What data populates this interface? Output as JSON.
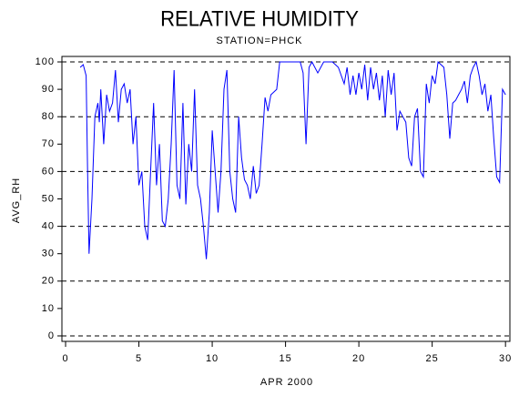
{
  "chart_data": {
    "type": "line",
    "title": "RELATIVE HUMIDITY",
    "subtitle": "STATION=PHCK",
    "xlabel": "APR 2000",
    "ylabel": "AVG_RH",
    "xlim": [
      -0.25,
      30.3
    ],
    "ylim": [
      -2,
      102
    ],
    "xticks": [
      0,
      5,
      10,
      15,
      20,
      25,
      30
    ],
    "yticks": [
      0,
      10,
      20,
      30,
      40,
      50,
      60,
      70,
      80,
      90,
      100
    ],
    "ygrid": [
      0,
      20,
      40,
      60,
      80,
      100
    ],
    "series": [
      {
        "color": "#0000ff",
        "x": [
          1.0,
          1.2,
          1.4,
          1.5,
          1.6,
          1.8,
          2.0,
          2.2,
          2.3,
          2.4,
          2.6,
          2.8,
          3.0,
          3.2,
          3.4,
          3.6,
          3.8,
          4.0,
          4.2,
          4.4,
          4.6,
          4.8,
          5.0,
          5.2,
          5.4,
          5.6,
          5.8,
          6.0,
          6.2,
          6.4,
          6.6,
          6.8,
          7.0,
          7.2,
          7.4,
          7.6,
          7.8,
          8.0,
          8.2,
          8.4,
          8.6,
          8.8,
          9.0,
          9.2,
          9.4,
          9.6,
          9.8,
          10.0,
          10.2,
          10.4,
          10.6,
          10.8,
          11.0,
          11.2,
          11.4,
          11.6,
          11.8,
          12.0,
          12.2,
          12.4,
          12.6,
          12.8,
          13.0,
          13.2,
          13.4,
          13.6,
          13.8,
          14.0,
          14.4,
          14.6,
          15.0,
          15.6,
          16.0,
          16.2,
          16.4,
          16.6,
          16.8,
          17.2,
          17.6,
          18.2,
          18.6,
          19.0,
          19.2,
          19.4,
          19.6,
          19.8,
          20.0,
          20.2,
          20.4,
          20.6,
          20.8,
          21.0,
          21.2,
          21.4,
          21.6,
          21.8,
          22.0,
          22.2,
          22.4,
          22.6,
          22.8,
          23.0,
          23.2,
          23.4,
          23.6,
          23.8,
          24.0,
          24.2,
          24.4,
          24.6,
          24.8,
          25.0,
          25.2,
          25.4,
          25.6,
          25.8,
          26.0,
          26.2,
          26.4,
          26.6,
          26.8,
          27.0,
          27.2,
          27.4,
          27.6,
          27.8,
          28.0,
          28.2,
          28.4,
          28.6,
          28.8,
          29.0,
          29.2,
          29.4,
          29.6,
          29.8,
          30.0
        ],
        "values": [
          98,
          99,
          95,
          60,
          30,
          50,
          80,
          85,
          78,
          90,
          70,
          88,
          82,
          85,
          97,
          78,
          90,
          92,
          85,
          90,
          70,
          80,
          55,
          60,
          40,
          35,
          60,
          85,
          55,
          70,
          42,
          40,
          50,
          70,
          97,
          55,
          50,
          85,
          48,
          70,
          60,
          90,
          55,
          50,
          40,
          28,
          45,
          75,
          60,
          45,
          60,
          90,
          97,
          60,
          50,
          45,
          80,
          65,
          57,
          55,
          50,
          62,
          52,
          55,
          70,
          87,
          82,
          88,
          90,
          100,
          100,
          100,
          100,
          96,
          70,
          98,
          100,
          96,
          100,
          100,
          98,
          92,
          98,
          88,
          95,
          88,
          96,
          90,
          99,
          86,
          98,
          90,
          96,
          86,
          95,
          80,
          97,
          88,
          96,
          75,
          82,
          80,
          78,
          65,
          62,
          80,
          83,
          60,
          58,
          92,
          85,
          95,
          92,
          100,
          99,
          98,
          88,
          72,
          85,
          86,
          88,
          90,
          93,
          85,
          95,
          98,
          100,
          95,
          88,
          92,
          82,
          88,
          72,
          58,
          56,
          90,
          88
        ]
      }
    ]
  }
}
